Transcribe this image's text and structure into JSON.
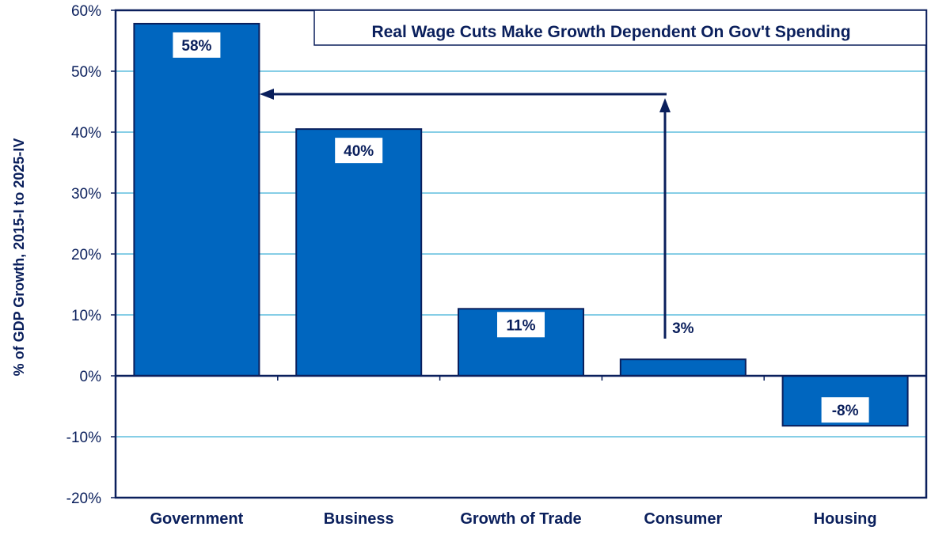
{
  "chart_data": {
    "type": "bar",
    "title": "Real Wage Cuts Make Growth Dependent On Gov't Spending",
    "ylabel": "% of GDP Growth, 2015-I to 2025-IV",
    "xlabel": "",
    "categories": [
      "Government",
      "Business",
      "Growth of Trade",
      "Consumer",
      "Housing"
    ],
    "values": [
      58,
      40,
      11,
      3,
      -8
    ],
    "plotted_values": [
      57.8,
      40.5,
      11.0,
      2.7,
      -8.2
    ],
    "data_labels": [
      "58%",
      "40%",
      "11%",
      "3%",
      "-8%"
    ],
    "ylim": [
      -20,
      60
    ],
    "yticks": [
      -20,
      -10,
      0,
      10,
      20,
      30,
      40,
      50,
      60
    ],
    "ytick_labels": [
      "-20%",
      "-10%",
      "0%",
      "10%",
      "20%",
      "30%",
      "40%",
      "50%",
      "60%"
    ],
    "grid": true,
    "colors": {
      "bar": "#0066bf",
      "bar_edge": "#0a1f5c",
      "grid": "#3fb1d8",
      "text": "#0a1f5c",
      "arrow": "#0a1f5c"
    }
  }
}
